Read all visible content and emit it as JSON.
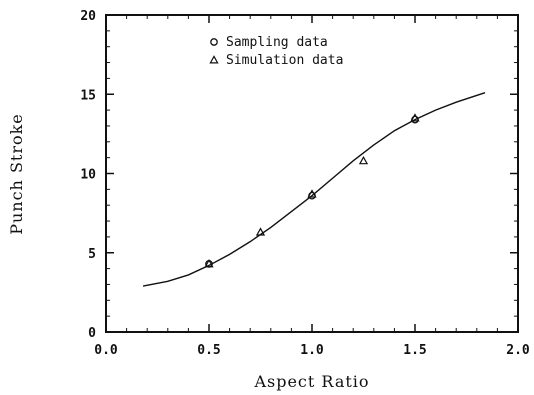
{
  "chart_data": {
    "type": "scatter",
    "title": "",
    "xlabel": "Aspect Ratio",
    "ylabel": "Punch Stroke",
    "xlim": [
      0.0,
      2.0
    ],
    "ylim": [
      0,
      20
    ],
    "x_ticks": [
      "0.0",
      "0.5",
      "1.0",
      "1.5",
      "2.0"
    ],
    "y_ticks": [
      "0",
      "5",
      "10",
      "15",
      "20"
    ],
    "grid": false,
    "legend_position": "top-center",
    "series": [
      {
        "name": "Sampling data",
        "marker": "circle",
        "points": [
          {
            "x": 0.5,
            "y": 4.3
          },
          {
            "x": 1.0,
            "y": 8.6
          },
          {
            "x": 1.5,
            "y": 13.4
          }
        ]
      },
      {
        "name": "Simulation data",
        "marker": "triangle",
        "points": [
          {
            "x": 0.5,
            "y": 4.3
          },
          {
            "x": 0.75,
            "y": 6.3
          },
          {
            "x": 1.0,
            "y": 8.7
          },
          {
            "x": 1.25,
            "y": 10.8
          },
          {
            "x": 1.5,
            "y": 13.5
          }
        ]
      },
      {
        "marker": "line",
        "points": [
          {
            "x": 0.18,
            "y": 2.9
          },
          {
            "x": 0.3,
            "y": 3.2
          },
          {
            "x": 0.4,
            "y": 3.6
          },
          {
            "x": 0.5,
            "y": 4.2
          },
          {
            "x": 0.6,
            "y": 4.9
          },
          {
            "x": 0.7,
            "y": 5.7
          },
          {
            "x": 0.8,
            "y": 6.6
          },
          {
            "x": 0.9,
            "y": 7.6
          },
          {
            "x": 1.0,
            "y": 8.6
          },
          {
            "x": 1.1,
            "y": 9.7
          },
          {
            "x": 1.2,
            "y": 10.8
          },
          {
            "x": 1.3,
            "y": 11.8
          },
          {
            "x": 1.4,
            "y": 12.7
          },
          {
            "x": 1.5,
            "y": 13.4
          },
          {
            "x": 1.6,
            "y": 14.0
          },
          {
            "x": 1.7,
            "y": 14.5
          },
          {
            "x": 1.84,
            "y": 15.1
          }
        ]
      }
    ],
    "colors": {
      "ink": "#111111",
      "background": "#ffffff"
    }
  }
}
